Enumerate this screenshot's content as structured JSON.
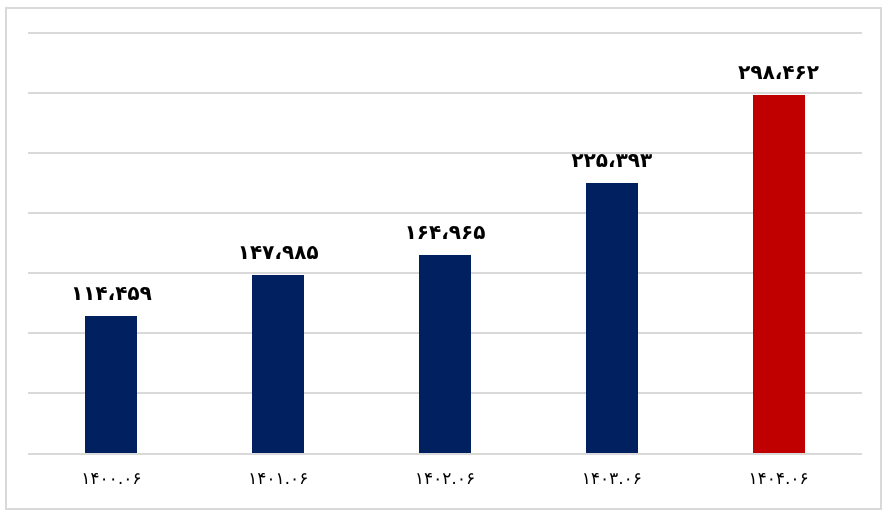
{
  "chart_data": {
    "type": "bar",
    "categories": [
      "۱۴۰۰.۰۶",
      "۱۴۰۱.۰۶",
      "۱۴۰۲.۰۶",
      "۱۴۰۳.۰۶",
      "۱۴۰۴.۰۶"
    ],
    "values": [
      114459,
      147985,
      164965,
      225393,
      298462
    ],
    "value_labels": [
      "۱۱۴،۴۵۹",
      "۱۴۷،۹۸۵",
      "۱۶۴،۹۶۵",
      "۲۲۵،۳۹۳",
      "۲۹۸،۴۶۲"
    ],
    "bar_colors": [
      "#002060",
      "#002060",
      "#002060",
      "#002060",
      "#C00000"
    ],
    "title": "",
    "xlabel": "",
    "ylabel": "",
    "ylim": [
      0,
      350000
    ],
    "gridline_step": 50000,
    "grid": true,
    "legend_position": "none",
    "y_axis_labels_visible": false
  },
  "colors": {
    "bar_default": "#002060",
    "bar_highlight": "#C00000",
    "gridline": "#D9D9D9",
    "axis_line": "#D9D9D9",
    "frame_border": "#D9D9D9",
    "label_text": "#000000",
    "background": "#FFFFFF"
  }
}
